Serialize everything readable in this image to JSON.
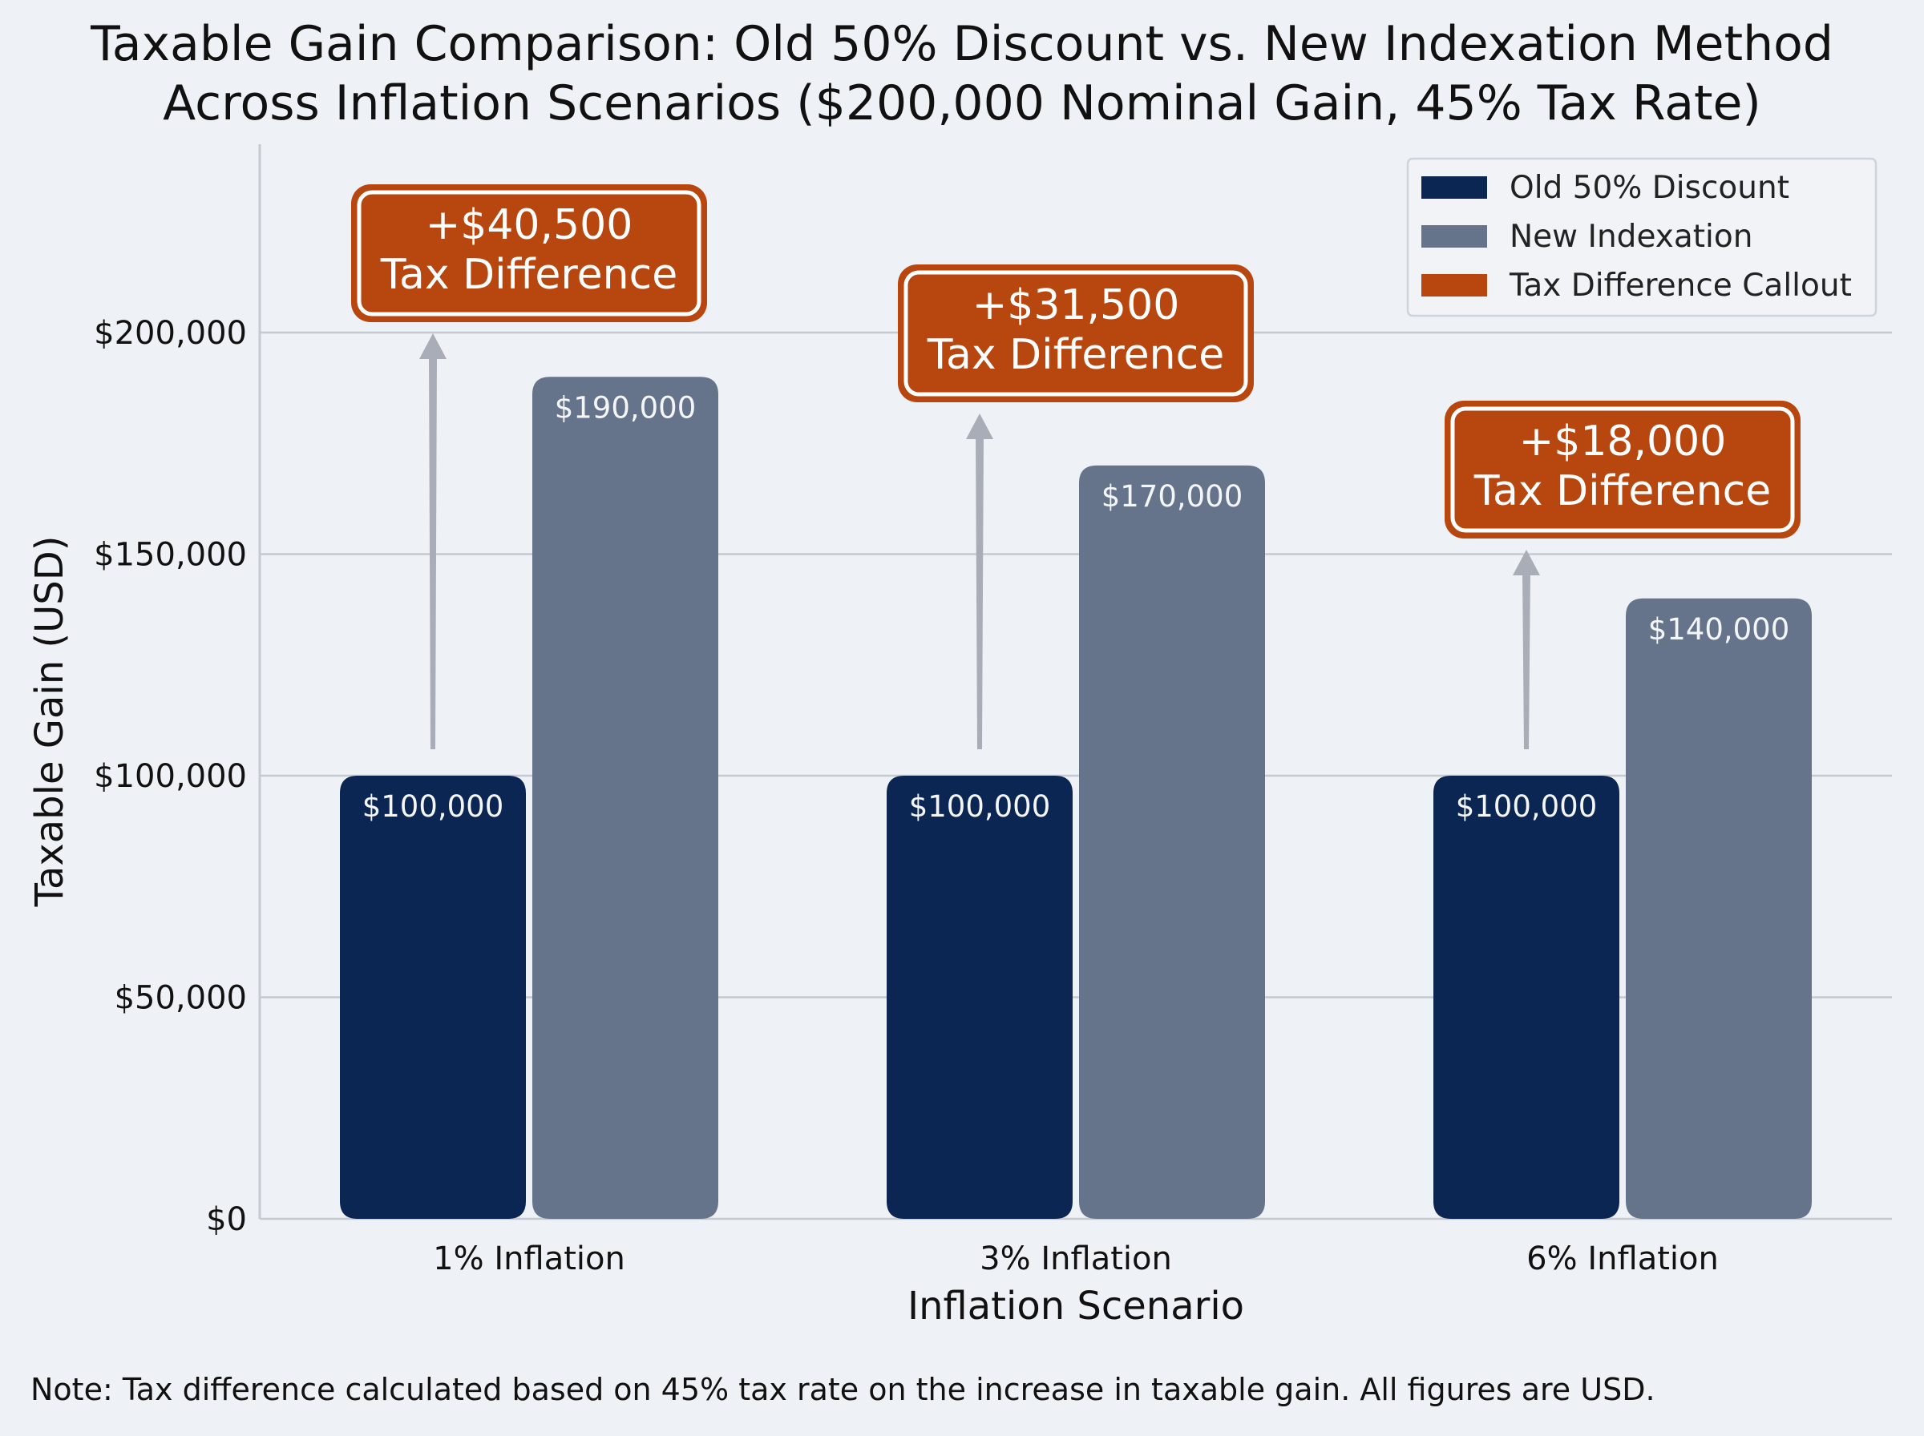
{
  "title_lines": [
    "Taxable Gain Comparison: Old 50% Discount vs. New Indexation Method",
    "Across Inflation Scenarios ($200,000 Nominal Gain, 45% Tax Rate)"
  ],
  "footnote": "Note: Tax difference calculated based on 45% tax rate on the increase in taxable gain. All figures are USD.",
  "colors": {
    "old": "#0b2653",
    "new": "#66748b",
    "callout": "#b8460f",
    "arrow": "#a9adb7",
    "grid": "#c5c9d1",
    "background": "#eef1f5"
  },
  "chart_data": {
    "type": "bar",
    "xlabel": "Inflation Scenario",
    "ylabel": "Taxable Gain (USD)",
    "ylim": [
      0,
      240000
    ],
    "yticks": [
      0,
      50000,
      100000,
      150000,
      200000
    ],
    "ytick_labels": [
      "$0",
      "$50,000",
      "$100,000",
      "$150,000",
      "$200,000"
    ],
    "grid": true,
    "legend_position": "top-right",
    "categories": [
      "1% Inflation",
      "3% Inflation",
      "6% Inflation"
    ],
    "series": [
      {
        "name": "Old 50% Discount",
        "values": [
          100000,
          100000,
          100000
        ],
        "labels": [
          "$100,000",
          "$100,000",
          "$100,000"
        ],
        "color": "#0b2653"
      },
      {
        "name": "New Indexation",
        "values": [
          190000,
          170000,
          140000
        ],
        "labels": [
          "$190,000",
          "$170,000",
          "$140,000"
        ],
        "color": "#66748b"
      }
    ],
    "legend": [
      {
        "label": "Old 50% Discount",
        "color": "#0b2653"
      },
      {
        "label": "New Indexation",
        "color": "#66748b"
      },
      {
        "label": "Tax Difference Callout",
        "color": "#b8460f"
      }
    ],
    "callouts": [
      {
        "amount": "+$40,500",
        "text": "Tax Difference",
        "value": 40500
      },
      {
        "amount": "+$31,500",
        "text": "Tax Difference",
        "value": 31500
      },
      {
        "amount": "+$18,000",
        "text": "Tax Difference",
        "value": 18000
      }
    ]
  }
}
